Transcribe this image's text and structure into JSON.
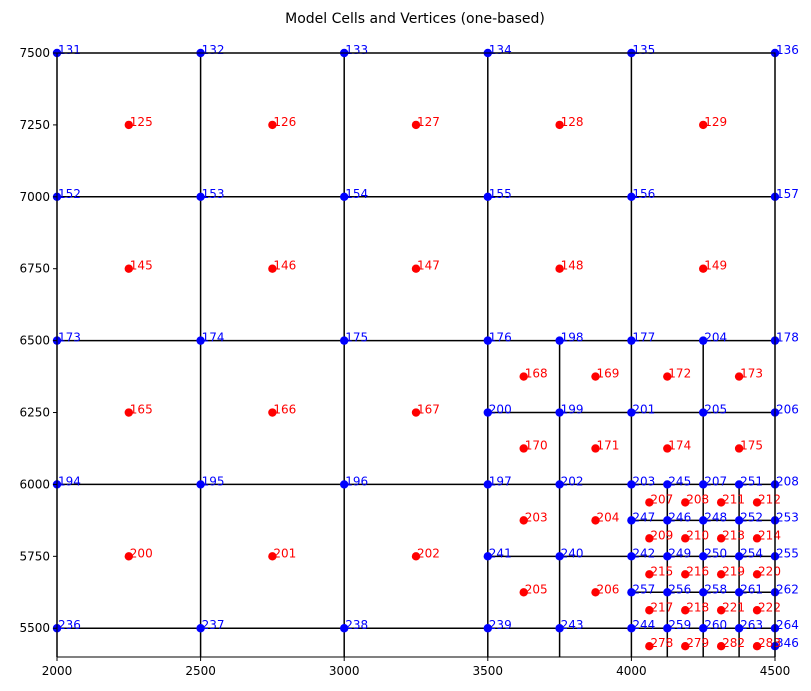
{
  "chart_data": {
    "type": "scatter",
    "title": "Model Cells and Vertices (one-based)",
    "xlim": [
      2000,
      4500
    ],
    "ylim": [
      5400,
      7500
    ],
    "xticks": [
      "2000",
      "2500",
      "3000",
      "3500",
      "4000",
      "4500"
    ],
    "yticks": [
      "5500",
      "5750",
      "6000",
      "6250",
      "6500",
      "6750",
      "7000",
      "7250",
      "7500"
    ],
    "grid": false,
    "colors": {
      "vertex": "#0000ff",
      "cell": "#ff0000",
      "line": "#000000"
    },
    "vertices": [
      {
        "id": "131",
        "x": 2000,
        "y": 7500
      },
      {
        "id": "132",
        "x": 2500,
        "y": 7500
      },
      {
        "id": "133",
        "x": 3000,
        "y": 7500
      },
      {
        "id": "134",
        "x": 3500,
        "y": 7500
      },
      {
        "id": "135",
        "x": 4000,
        "y": 7500
      },
      {
        "id": "136",
        "x": 4500,
        "y": 7500
      },
      {
        "id": "152",
        "x": 2000,
        "y": 7000
      },
      {
        "id": "153",
        "x": 2500,
        "y": 7000
      },
      {
        "id": "154",
        "x": 3000,
        "y": 7000
      },
      {
        "id": "155",
        "x": 3500,
        "y": 7000
      },
      {
        "id": "156",
        "x": 4000,
        "y": 7000
      },
      {
        "id": "157",
        "x": 4500,
        "y": 7000
      },
      {
        "id": "173",
        "x": 2000,
        "y": 6500
      },
      {
        "id": "174",
        "x": 2500,
        "y": 6500
      },
      {
        "id": "175",
        "x": 3000,
        "y": 6500
      },
      {
        "id": "176",
        "x": 3500,
        "y": 6500
      },
      {
        "id": "198",
        "x": 3750,
        "y": 6500
      },
      {
        "id": "177",
        "x": 4000,
        "y": 6500
      },
      {
        "id": "204",
        "x": 4250,
        "y": 6500
      },
      {
        "id": "178",
        "x": 4500,
        "y": 6500
      },
      {
        "id": "200",
        "x": 3500,
        "y": 6250
      },
      {
        "id": "199",
        "x": 3750,
        "y": 6250
      },
      {
        "id": "201",
        "x": 4000,
        "y": 6250
      },
      {
        "id": "205",
        "x": 4250,
        "y": 6250
      },
      {
        "id": "206",
        "x": 4500,
        "y": 6250
      },
      {
        "id": "194",
        "x": 2000,
        "y": 6000
      },
      {
        "id": "195",
        "x": 2500,
        "y": 6000
      },
      {
        "id": "196",
        "x": 3000,
        "y": 6000
      },
      {
        "id": "197",
        "x": 3500,
        "y": 6000
      },
      {
        "id": "202",
        "x": 3750,
        "y": 6000
      },
      {
        "id": "203",
        "x": 4000,
        "y": 6000
      },
      {
        "id": "245",
        "x": 4125,
        "y": 6000
      },
      {
        "id": "207",
        "x": 4250,
        "y": 6000
      },
      {
        "id": "251",
        "x": 4375,
        "y": 6000
      },
      {
        "id": "208",
        "x": 4500,
        "y": 6000
      },
      {
        "id": "247",
        "x": 4000,
        "y": 5875
      },
      {
        "id": "246",
        "x": 4125,
        "y": 5875
      },
      {
        "id": "248",
        "x": 4250,
        "y": 5875
      },
      {
        "id": "252",
        "x": 4375,
        "y": 5875
      },
      {
        "id": "253",
        "x": 4500,
        "y": 5875
      },
      {
        "id": "241",
        "x": 3500,
        "y": 5750
      },
      {
        "id": "240",
        "x": 3750,
        "y": 5750
      },
      {
        "id": "242",
        "x": 4000,
        "y": 5750
      },
      {
        "id": "249",
        "x": 4125,
        "y": 5750
      },
      {
        "id": "250",
        "x": 4250,
        "y": 5750
      },
      {
        "id": "254",
        "x": 4375,
        "y": 5750
      },
      {
        "id": "255",
        "x": 4500,
        "y": 5750
      },
      {
        "id": "257",
        "x": 4000,
        "y": 5625
      },
      {
        "id": "256",
        "x": 4125,
        "y": 5625
      },
      {
        "id": "258",
        "x": 4250,
        "y": 5625
      },
      {
        "id": "261",
        "x": 4375,
        "y": 5625
      },
      {
        "id": "262",
        "x": 4500,
        "y": 5625
      },
      {
        "id": "236",
        "x": 2000,
        "y": 5500
      },
      {
        "id": "237",
        "x": 2500,
        "y": 5500
      },
      {
        "id": "238",
        "x": 3000,
        "y": 5500
      },
      {
        "id": "239",
        "x": 3500,
        "y": 5500
      },
      {
        "id": "243",
        "x": 3750,
        "y": 5500
      },
      {
        "id": "244",
        "x": 4000,
        "y": 5500
      },
      {
        "id": "259",
        "x": 4125,
        "y": 5500
      },
      {
        "id": "260",
        "x": 4250,
        "y": 5500
      },
      {
        "id": "263",
        "x": 4375,
        "y": 5500
      },
      {
        "id": "264",
        "x": 4500,
        "y": 5500
      },
      {
        "id": "346",
        "x": 4500,
        "y": 5437.5
      }
    ],
    "cells": [
      {
        "id": "125",
        "x": 2250,
        "y": 7250
      },
      {
        "id": "126",
        "x": 2750,
        "y": 7250
      },
      {
        "id": "127",
        "x": 3250,
        "y": 7250
      },
      {
        "id": "128",
        "x": 3750,
        "y": 7250
      },
      {
        "id": "129",
        "x": 4250,
        "y": 7250
      },
      {
        "id": "145",
        "x": 2250,
        "y": 6750
      },
      {
        "id": "146",
        "x": 2750,
        "y": 6750
      },
      {
        "id": "147",
        "x": 3250,
        "y": 6750
      },
      {
        "id": "148",
        "x": 3750,
        "y": 6750
      },
      {
        "id": "149",
        "x": 4250,
        "y": 6750
      },
      {
        "id": "168",
        "x": 3625,
        "y": 6375
      },
      {
        "id": "169",
        "x": 3875,
        "y": 6375
      },
      {
        "id": "172",
        "x": 4125,
        "y": 6375
      },
      {
        "id": "173",
        "x": 4375,
        "y": 6375
      },
      {
        "id": "165",
        "x": 2250,
        "y": 6250
      },
      {
        "id": "166",
        "x": 2750,
        "y": 6250
      },
      {
        "id": "167",
        "x": 3250,
        "y": 6250
      },
      {
        "id": "170",
        "x": 3625,
        "y": 6125
      },
      {
        "id": "171",
        "x": 3875,
        "y": 6125
      },
      {
        "id": "174",
        "x": 4125,
        "y": 6125
      },
      {
        "id": "175",
        "x": 4375,
        "y": 6125
      },
      {
        "id": "207",
        "x": 4062.5,
        "y": 5937.5
      },
      {
        "id": "208",
        "x": 4187.5,
        "y": 5937.5
      },
      {
        "id": "211",
        "x": 4312.5,
        "y": 5937.5
      },
      {
        "id": "212",
        "x": 4437.5,
        "y": 5937.5
      },
      {
        "id": "203",
        "x": 3625,
        "y": 5875
      },
      {
        "id": "204",
        "x": 3875,
        "y": 5875
      },
      {
        "id": "209",
        "x": 4062.5,
        "y": 5812.5
      },
      {
        "id": "210",
        "x": 4187.5,
        "y": 5812.5
      },
      {
        "id": "213",
        "x": 4312.5,
        "y": 5812.5
      },
      {
        "id": "214",
        "x": 4437.5,
        "y": 5812.5
      },
      {
        "id": "200",
        "x": 2250,
        "y": 5750
      },
      {
        "id": "201",
        "x": 2750,
        "y": 5750
      },
      {
        "id": "202",
        "x": 3250,
        "y": 5750
      },
      {
        "id": "215",
        "x": 4062.5,
        "y": 5687.5
      },
      {
        "id": "216",
        "x": 4187.5,
        "y": 5687.5
      },
      {
        "id": "219",
        "x": 4312.5,
        "y": 5687.5
      },
      {
        "id": "220",
        "x": 4437.5,
        "y": 5687.5
      },
      {
        "id": "205",
        "x": 3625,
        "y": 5625
      },
      {
        "id": "206",
        "x": 3875,
        "y": 5625
      },
      {
        "id": "217",
        "x": 4062.5,
        "y": 5562.5
      },
      {
        "id": "218",
        "x": 4187.5,
        "y": 5562.5
      },
      {
        "id": "221",
        "x": 4312.5,
        "y": 5562.5
      },
      {
        "id": "222",
        "x": 4437.5,
        "y": 5562.5
      },
      {
        "id": "278",
        "x": 4062.5,
        "y": 5437.5
      },
      {
        "id": "279",
        "x": 4187.5,
        "y": 5437.5
      },
      {
        "id": "282",
        "x": 4312.5,
        "y": 5437.5
      },
      {
        "id": "283",
        "x": 4437.5,
        "y": 5437.5
      }
    ],
    "grid_lines": [
      [
        2000,
        7500,
        4500,
        7500
      ],
      [
        2000,
        7000,
        4500,
        7000
      ],
      [
        2000,
        6500,
        4500,
        6500
      ],
      [
        2000,
        6000,
        4500,
        6000
      ],
      [
        2000,
        5500,
        4500,
        5500
      ],
      [
        2000,
        7500,
        2000,
        5400
      ],
      [
        2500,
        7500,
        2500,
        5400
      ],
      [
        3000,
        7500,
        3000,
        5400
      ],
      [
        3500,
        7500,
        3500,
        5400
      ],
      [
        4000,
        7500,
        4000,
        5400
      ],
      [
        4500,
        7500,
        4500,
        5400
      ],
      [
        3500,
        6250,
        4500,
        6250
      ],
      [
        3500,
        5750,
        4500,
        5750
      ],
      [
        3750,
        6500,
        3750,
        5400
      ],
      [
        4250,
        6500,
        4250,
        5400
      ],
      [
        4000,
        5875,
        4500,
        5875
      ],
      [
        4000,
        5625,
        4500,
        5625
      ],
      [
        4125,
        6000,
        4125,
        5400
      ],
      [
        4375,
        6000,
        4375,
        5400
      ]
    ]
  }
}
